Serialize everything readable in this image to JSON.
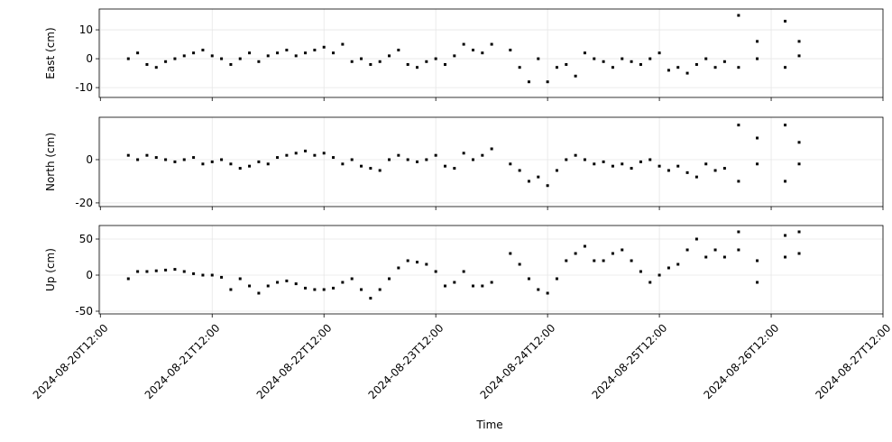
{
  "chart_data": {
    "type": "scatter",
    "xlabel": "Time",
    "grid": true,
    "color": "#000000",
    "xlim": [
      "2024-08-20T11:45",
      "2024-08-27T12:00"
    ],
    "xticks": [
      "2024-08-20T12:00",
      "2024-08-21T12:00",
      "2024-08-22T12:00",
      "2024-08-23T12:00",
      "2024-08-24T12:00",
      "2024-08-25T12:00",
      "2024-08-26T12:00",
      "2024-08-27T12:00"
    ],
    "x": [
      "2024-08-20T18:00",
      "2024-08-20T20:00",
      "2024-08-20T22:00",
      "2024-08-21T00:00",
      "2024-08-21T02:00",
      "2024-08-21T04:00",
      "2024-08-21T06:00",
      "2024-08-21T08:00",
      "2024-08-21T10:00",
      "2024-08-21T12:00",
      "2024-08-21T14:00",
      "2024-08-21T16:00",
      "2024-08-21T18:00",
      "2024-08-21T20:00",
      "2024-08-21T22:00",
      "2024-08-22T00:00",
      "2024-08-22T02:00",
      "2024-08-22T04:00",
      "2024-08-22T06:00",
      "2024-08-22T08:00",
      "2024-08-22T10:00",
      "2024-08-22T12:00",
      "2024-08-22T14:00",
      "2024-08-22T16:00",
      "2024-08-22T18:00",
      "2024-08-22T20:00",
      "2024-08-22T22:00",
      "2024-08-23T00:00",
      "2024-08-23T02:00",
      "2024-08-23T04:00",
      "2024-08-23T06:00",
      "2024-08-23T08:00",
      "2024-08-23T10:00",
      "2024-08-23T12:00",
      "2024-08-23T14:00",
      "2024-08-23T16:00",
      "2024-08-23T18:00",
      "2024-08-23T20:00",
      "2024-08-23T22:00",
      "2024-08-24T00:00",
      "2024-08-24T02:00",
      "2024-08-24T04:00",
      "2024-08-24T06:00",
      "2024-08-24T08:00",
      "2024-08-24T10:00",
      "2024-08-24T12:00",
      "2024-08-24T14:00",
      "2024-08-24T16:00",
      "2024-08-24T18:00",
      "2024-08-24T20:00",
      "2024-08-24T22:00",
      "2024-08-25T00:00",
      "2024-08-25T02:00",
      "2024-08-25T04:00",
      "2024-08-25T06:00",
      "2024-08-25T08:00",
      "2024-08-25T10:00",
      "2024-08-25T12:00",
      "2024-08-25T14:00",
      "2024-08-25T16:00",
      "2024-08-25T18:00",
      "2024-08-25T20:00",
      "2024-08-25T22:00",
      "2024-08-26T00:00",
      "2024-08-26T02:00",
      "2024-08-26T05:00",
      "2024-08-26T05:00",
      "2024-08-26T09:00",
      "2024-08-26T09:00",
      "2024-08-26T15:00",
      "2024-08-26T15:00",
      "2024-08-26T18:00",
      "2024-08-26T18:00"
    ],
    "panels": [
      {
        "ylabel": "East (cm)",
        "ylim": [
          -13.4,
          17.2
        ],
        "yticks": [
          -10,
          0,
          10
        ],
        "values": [
          0,
          2,
          -2,
          -3,
          -1,
          0,
          1,
          2,
          3,
          1,
          0,
          -2,
          0,
          2,
          -1,
          1,
          2,
          3,
          1,
          2,
          3,
          4,
          2,
          5,
          -1,
          0,
          -2,
          -1,
          1,
          3,
          -2,
          -3,
          -1,
          0,
          -2,
          1,
          5,
          3,
          2,
          5,
          null,
          3,
          -3,
          -8,
          0,
          -8,
          -3,
          -2,
          -6,
          2,
          0,
          -1,
          -3,
          0,
          -1,
          -2,
          0,
          2,
          -4,
          -3,
          -5,
          -2,
          0,
          -3,
          -1,
          15,
          -3,
          6,
          0,
          13,
          -3,
          6,
          1
        ]
      },
      {
        "ylabel": "North (cm)",
        "ylim": [
          -21.7,
          19.6
        ],
        "yticks": [
          -20,
          0
        ],
        "values": [
          2,
          0,
          2,
          1,
          0,
          -1,
          0,
          1,
          -2,
          -1,
          0,
          -2,
          -4,
          -3,
          -1,
          -2,
          1,
          2,
          3,
          4,
          2,
          3,
          1,
          -2,
          0,
          -3,
          -4,
          -5,
          0,
          2,
          0,
          -1,
          0,
          2,
          -3,
          -4,
          3,
          0,
          2,
          5,
          null,
          -2,
          -5,
          -10,
          -8,
          -12,
          -5,
          0,
          2,
          0,
          -2,
          -1,
          -3,
          -2,
          -4,
          -1,
          0,
          -3,
          -5,
          -3,
          -6,
          -8,
          -2,
          -5,
          -4,
          16,
          -10,
          10,
          -2,
          16,
          -10,
          8,
          -2
        ]
      },
      {
        "ylabel": "Up (cm)",
        "ylim": [
          -53.75,
          68.75
        ],
        "yticks": [
          -50,
          0,
          50
        ],
        "values": [
          -5,
          5,
          5,
          6,
          7,
          8,
          5,
          2,
          0,
          0,
          -3,
          -20,
          -5,
          -15,
          -25,
          -15,
          -10,
          -8,
          -12,
          -18,
          -20,
          -20,
          -18,
          -10,
          -5,
          -20,
          -32,
          -20,
          -5,
          10,
          20,
          18,
          15,
          5,
          -15,
          -10,
          5,
          -15,
          -15,
          -10,
          null,
          30,
          15,
          -5,
          -20,
          -25,
          -5,
          20,
          30,
          40,
          20,
          20,
          30,
          35,
          20,
          5,
          -10,
          0,
          10,
          15,
          35,
          50,
          25,
          35,
          25,
          60,
          35,
          20,
          -10,
          55,
          25,
          60,
          30
        ]
      }
    ]
  }
}
